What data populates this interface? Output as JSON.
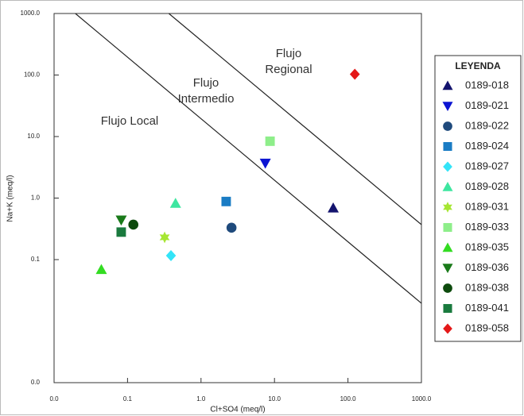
{
  "chart_data": {
    "type": "scatter",
    "x_label": "Cl+SO4 (meq/l)",
    "y_label": "Na+K (meq/l)",
    "log_x": true,
    "log_y": true,
    "grid": false,
    "xlim": [
      0.01,
      1000
    ],
    "ylim": [
      0.001,
      1000
    ],
    "xticks": [
      {
        "value": 0.01,
        "label": "0.0"
      },
      {
        "value": 0.1,
        "label": "0.1"
      },
      {
        "value": 1,
        "label": "1.0"
      },
      {
        "value": 10,
        "label": "10.0"
      },
      {
        "value": 100,
        "label": "100.0"
      },
      {
        "value": 1000,
        "label": "1000.0"
      }
    ],
    "yticks": [
      {
        "value": 0.001,
        "label": "0.0"
      },
      {
        "value": 0.1,
        "label": "0.1"
      },
      {
        "value": 1,
        "label": "1.0"
      },
      {
        "value": 10,
        "label": "10.0"
      },
      {
        "value": 100,
        "label": "100.0"
      },
      {
        "value": 1000,
        "label": "1000.0"
      }
    ],
    "legend_title": "LEYENDA",
    "legend_position": "right",
    "annotations": [
      [
        "Flujo Local"
      ],
      [
        "Flujo",
        "Intermedio"
      ],
      [
        "Flujo",
        "Regional"
      ]
    ],
    "boundaries": [
      {
        "x": [
          0.0195,
          1000
        ],
        "y": [
          1000,
          0.0195
        ],
        "color": "#222222"
      },
      {
        "x": [
          0.365,
          1000
        ],
        "y": [
          1000,
          0.37
        ],
        "color": "#222222"
      }
    ],
    "series": [
      {
        "name": "0189-018",
        "color": "#14146e",
        "marker": "triangle-up",
        "x": [
          63
        ],
        "values": [
          0.69
        ]
      },
      {
        "name": "0189-021",
        "color": "#0c14d2",
        "marker": "triangle-down",
        "x": [
          7.5
        ],
        "values": [
          3.7
        ]
      },
      {
        "name": "0189-022",
        "color": "#1f4a7c",
        "marker": "circle",
        "x": [
          2.6
        ],
        "values": [
          0.33
        ]
      },
      {
        "name": "0189-024",
        "color": "#1a7cc4",
        "marker": "square",
        "x": [
          2.2
        ],
        "values": [
          0.88
        ]
      },
      {
        "name": "0189-027",
        "color": "#33e4f8",
        "marker": "diamond",
        "x": [
          0.39
        ],
        "values": [
          0.116
        ]
      },
      {
        "name": "0189-028",
        "color": "#3ee6a0",
        "marker": "triangle-up",
        "x": [
          0.45
        ],
        "values": [
          0.82
        ]
      },
      {
        "name": "0189-031",
        "color": "#a6e632",
        "marker": "star",
        "x": [
          0.32
        ],
        "values": [
          0.23
        ]
      },
      {
        "name": "0189-033",
        "color": "#8eee8a",
        "marker": "square",
        "x": [
          8.7
        ],
        "values": [
          8.4
        ]
      },
      {
        "name": "0189-035",
        "color": "#33dc22",
        "marker": "triangle-up",
        "x": [
          0.044
        ],
        "values": [
          0.069
        ]
      },
      {
        "name": "0189-036",
        "color": "#1a7a1a",
        "marker": "triangle-down",
        "x": [
          0.082
        ],
        "values": [
          0.44
        ]
      },
      {
        "name": "0189-038",
        "color": "#0d4a0d",
        "marker": "circle",
        "x": [
          0.12
        ],
        "values": [
          0.37
        ]
      },
      {
        "name": "0189-041",
        "color": "#1a7a3e",
        "marker": "square",
        "x": [
          0.082
        ],
        "values": [
          0.28
        ]
      },
      {
        "name": "0189-058",
        "color": "#e41818",
        "marker": "diamond",
        "x": [
          124
        ],
        "values": [
          103
        ]
      }
    ]
  }
}
